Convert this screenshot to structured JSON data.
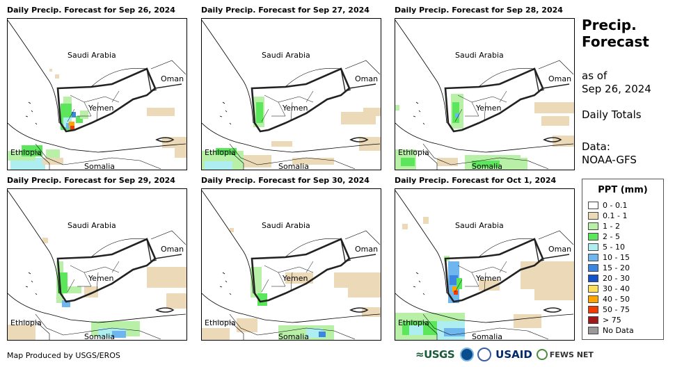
{
  "panels": [
    {
      "title": "Daily Precip. Forecast for Sep 26, 2024",
      "variant": 0
    },
    {
      "title": "Daily Precip. Forecast for Sep 27, 2024",
      "variant": 1
    },
    {
      "title": "Daily Precip. Forecast for Sep 28, 2024",
      "variant": 2
    },
    {
      "title": "Daily Precip. Forecast for Sep 29, 2024",
      "variant": 3
    },
    {
      "title": "Daily Precip. Forecast for Sep 30, 2024",
      "variant": 4
    },
    {
      "title": "Daily Precip. Forecast for Oct 1, 2024",
      "variant": 5
    }
  ],
  "labels": {
    "saudi": "Saudi Arabia",
    "oman": "Oman",
    "yemen": "Yemen",
    "ethiopia": "Ethiopia",
    "somalia": "Somalia"
  },
  "side": {
    "title_line1": "Precip.",
    "title_line2": "Forecast",
    "asof_line1": "as of",
    "asof_line2": "Sep 26, 2024",
    "totals": "Daily Totals",
    "data_line1": "Data:",
    "data_line2": "NOAA-GFS"
  },
  "legend": {
    "title": "PPT (mm)",
    "items": [
      {
        "label": "0 - 0.1",
        "color": "#ffffff"
      },
      {
        "label": "0.1 - 1",
        "color": "#ecd9b8"
      },
      {
        "label": "1 - 2",
        "color": "#b8f0a8"
      },
      {
        "label": "2 - 5",
        "color": "#5ce65c"
      },
      {
        "label": "5 - 10",
        "color": "#aeeef0"
      },
      {
        "label": "10 - 15",
        "color": "#6fb6ee"
      },
      {
        "label": "15 - 20",
        "color": "#3a86e0"
      },
      {
        "label": "20 - 30",
        "color": "#1452c8"
      },
      {
        "label": "30 - 40",
        "color": "#ffe05a"
      },
      {
        "label": "40 - 50",
        "color": "#ffa500"
      },
      {
        "label": "50 - 75",
        "color": "#f03c00"
      },
      {
        "label": "> 75",
        "color": "#a01818"
      },
      {
        "label": "No Data",
        "color": "#999999"
      }
    ]
  },
  "footer": {
    "credit": "Map Produced by USGS/EROS",
    "logo_usgs": "≈USGS",
    "logo_usaid": "USAID",
    "logo_fews": "FEWS NET"
  }
}
